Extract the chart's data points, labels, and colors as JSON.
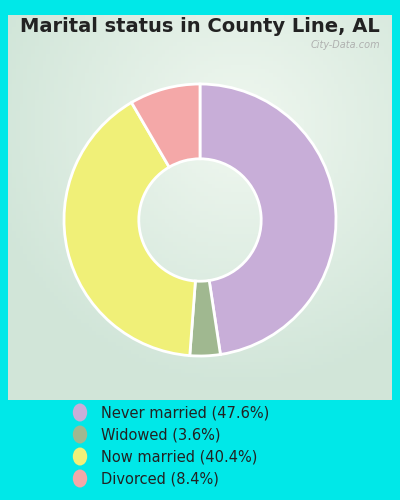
{
  "title": "Marital status in County Line, AL",
  "slices": [
    47.6,
    3.6,
    40.4,
    8.4
  ],
  "labels": [
    "Never married (47.6%)",
    "Widowed (3.6%)",
    "Now married (40.4%)",
    "Divorced (8.4%)"
  ],
  "colors": [
    "#c8aed8",
    "#a0b890",
    "#f0f078",
    "#f4a8a8"
  ],
  "start_angle": 90,
  "background_outer": "#00e8e8",
  "background_inner_top": "#e8f5ee",
  "background_inner_bottom": "#d0ead8",
  "title_fontsize": 14,
  "legend_fontsize": 10.5,
  "watermark": "City-Data.com",
  "donut_width": 0.55
}
